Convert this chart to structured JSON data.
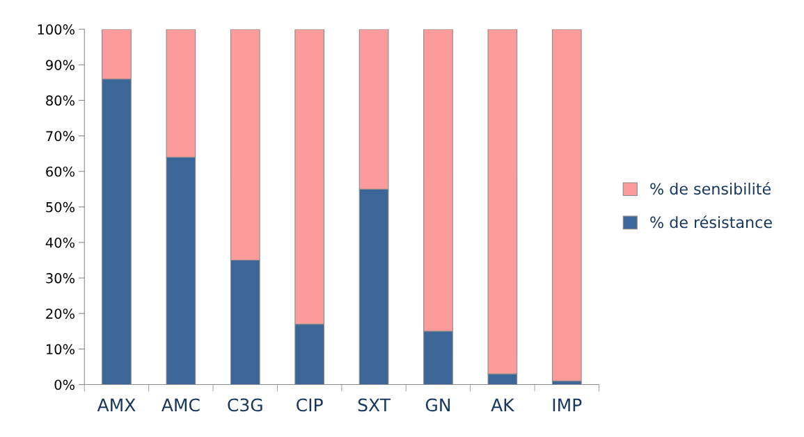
{
  "chart_data": {
    "type": "bar",
    "stacked": true,
    "categories": [
      "AMX",
      "AMC",
      "C3G",
      "CIP",
      "SXT",
      "GN",
      "AK",
      "IMP"
    ],
    "series": [
      {
        "name": "% de résistance",
        "color": "#3c6697",
        "values": [
          86,
          64,
          35,
          17,
          55,
          15,
          3,
          1
        ]
      },
      {
        "name": "% de sensibilité",
        "color": "#fb9b9c",
        "values": [
          14,
          36,
          65,
          83,
          45,
          85,
          97,
          99
        ]
      }
    ],
    "ylim": [
      0,
      100
    ],
    "yticks": [
      {
        "value": 0,
        "label": "0%"
      },
      {
        "value": 10,
        "label": "10%"
      },
      {
        "value": 20,
        "label": "20%"
      },
      {
        "value": 30,
        "label": "30%"
      },
      {
        "value": 40,
        "label": "40%"
      },
      {
        "value": 50,
        "label": "50%"
      },
      {
        "value": 60,
        "label": "60%"
      },
      {
        "value": 70,
        "label": "70%"
      },
      {
        "value": 80,
        "label": "80%"
      },
      {
        "value": 90,
        "label": "90%"
      },
      {
        "value": 100,
        "label": "100%"
      }
    ],
    "grid": false,
    "legend": "right"
  }
}
